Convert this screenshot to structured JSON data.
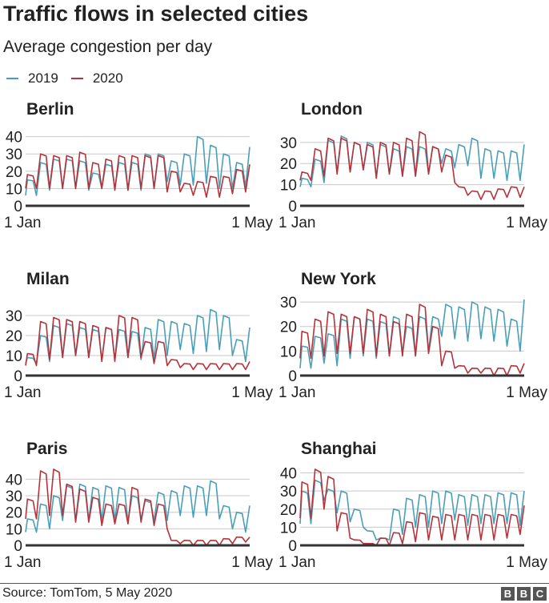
{
  "header": {
    "title": "Traffic flows in selected cities",
    "subtitle": "Average congestion per day"
  },
  "legend": [
    {
      "label": "2019",
      "color": "#4a9fb8"
    },
    {
      "label": "2020",
      "color": "#b5333a"
    }
  ],
  "footer": {
    "source": "Source: TomTom, 5 May 2020",
    "logo": [
      "B",
      "B",
      "C"
    ]
  },
  "chart_data": [
    {
      "type": "line",
      "title": "Berlin",
      "x_ticks": [
        "1 Jan",
        "1 May"
      ],
      "ylim": [
        0,
        44
      ],
      "y_ticks": [
        0,
        10,
        20,
        30,
        40
      ],
      "grid": true,
      "series": [
        {
          "name": "2019",
          "weekday_peaks": [
            15,
            25,
            27,
            27,
            26,
            19,
            24,
            25,
            25,
            30,
            30,
            26,
            30,
            40,
            35,
            30,
            25,
            34
          ],
          "weekend_lows": [
            6,
            9,
            10,
            10,
            9,
            10,
            10,
            9,
            9,
            10,
            14,
            12,
            12,
            13,
            10,
            10,
            11,
            12
          ]
        },
        {
          "name": "2020",
          "weekday_peaks": [
            18,
            30,
            29,
            29,
            31,
            25,
            27,
            29,
            29,
            29,
            29,
            20,
            13,
            14,
            17,
            17,
            21,
            24
          ],
          "weekend_lows": [
            10,
            10,
            10,
            10,
            10,
            10,
            9,
            9,
            10,
            10,
            8,
            8,
            6,
            5,
            5,
            7,
            8,
            9
          ]
        }
      ]
    },
    {
      "type": "line",
      "title": "London",
      "x_ticks": [
        "1 Jan",
        "1 May"
      ],
      "ylim": [
        0,
        36
      ],
      "y_ticks": [
        0,
        10,
        20,
        30
      ],
      "grid": true,
      "series": [
        {
          "name": "2019",
          "weekday_peaks": [
            13,
            22,
            31,
            33,
            30,
            30,
            29,
            27,
            28,
            28,
            28,
            27,
            29,
            32,
            27,
            26,
            26,
            29
          ],
          "weekend_lows": [
            9,
            11,
            16,
            16,
            17,
            14,
            15,
            14,
            14,
            15,
            20,
            18,
            19,
            13,
            13,
            12,
            12,
            12
          ]
        },
        {
          "name": "2020",
          "weekday_peaks": [
            16,
            27,
            32,
            32,
            30,
            29,
            30,
            30,
            32,
            35,
            28,
            24,
            9,
            7,
            7,
            8,
            9,
            9
          ],
          "weekend_lows": [
            12,
            14,
            15,
            16,
            17,
            13,
            15,
            14,
            14,
            15,
            16,
            11,
            5,
            3,
            3,
            4,
            4,
            5
          ]
        }
      ]
    },
    {
      "type": "line",
      "title": "Milan",
      "x_ticks": [
        "1 Jan",
        "1 May"
      ],
      "ylim": [
        0,
        38
      ],
      "y_ticks": [
        0,
        10,
        20,
        30
      ],
      "grid": true,
      "series": [
        {
          "name": "2019",
          "weekday_peaks": [
            9,
            20,
            25,
            26,
            24,
            23,
            24,
            23,
            22,
            24,
            28,
            27,
            26,
            30,
            33,
            30,
            18,
            24
          ],
          "weekend_lows": [
            6,
            7,
            9,
            10,
            9,
            8,
            8,
            9,
            8,
            8,
            10,
            13,
            11,
            12,
            13,
            10,
            7,
            8
          ]
        },
        {
          "name": "2020",
          "weekday_peaks": [
            11,
            27,
            29,
            28,
            27,
            25,
            24,
            30,
            29,
            17,
            17,
            8,
            6,
            6,
            6,
            6,
            6,
            7
          ],
          "weekend_lows": [
            5,
            8,
            9,
            10,
            9,
            7,
            7,
            9,
            9,
            6,
            5,
            4,
            3,
            3,
            3,
            3,
            3,
            3
          ]
        }
      ]
    },
    {
      "type": "line",
      "title": "New York",
      "x_ticks": [
        "1 Jan",
        "1 May"
      ],
      "ylim": [
        0,
        31
      ],
      "y_ticks": [
        0,
        10,
        20,
        30
      ],
      "grid": true,
      "series": [
        {
          "name": "2019",
          "weekday_peaks": [
            12,
            16,
            17,
            23,
            24,
            23,
            22,
            24,
            20,
            24,
            24,
            29,
            28,
            30,
            28,
            27,
            23,
            31
          ],
          "weekend_lows": [
            3,
            5,
            4,
            7,
            8,
            7,
            8,
            9,
            8,
            10,
            16,
            15,
            14,
            15,
            14,
            12,
            10,
            11
          ]
        },
        {
          "name": "2020",
          "weekday_peaks": [
            18,
            23,
            26,
            25,
            24,
            27,
            25,
            22,
            25,
            29,
            20,
            10,
            4,
            3,
            3,
            3,
            4,
            5
          ],
          "weekend_lows": [
            7,
            8,
            9,
            9,
            9,
            8,
            8,
            8,
            8,
            9,
            4,
            3,
            1,
            1,
            0,
            0,
            1,
            2
          ]
        }
      ]
    },
    {
      "type": "line",
      "title": "Paris",
      "x_ticks": [
        "1 Jan",
        "1 May"
      ],
      "ylim": [
        0,
        46
      ],
      "y_ticks": [
        0,
        10,
        20,
        30,
        40
      ],
      "grid": true,
      "series": [
        {
          "name": "2019",
          "weekday_peaks": [
            16,
            25,
            30,
            36,
            37,
            35,
            36,
            35,
            30,
            27,
            32,
            33,
            36,
            36,
            39,
            24,
            20,
            24
          ],
          "weekend_lows": [
            8,
            10,
            15,
            15,
            15,
            15,
            15,
            14,
            16,
            15,
            15,
            18,
            17,
            18,
            16,
            10,
            8,
            8
          ]
        },
        {
          "name": "2020",
          "weekday_peaks": [
            28,
            45,
            46,
            37,
            34,
            29,
            25,
            25,
            35,
            28,
            25,
            3,
            3,
            3,
            3,
            4,
            5,
            5
          ],
          "weekend_lows": [
            16,
            18,
            18,
            14,
            14,
            12,
            13,
            13,
            14,
            12,
            10,
            1,
            0,
            0,
            0,
            1,
            2,
            2
          ]
        }
      ]
    },
    {
      "type": "line",
      "title": "Shanghai",
      "x_ticks": [
        "1 Jan",
        "1 May"
      ],
      "ylim": [
        0,
        42
      ],
      "y_ticks": [
        0,
        10,
        20,
        30,
        40
      ],
      "grid": true,
      "series": [
        {
          "name": "2019",
          "weekday_peaks": [
            30,
            36,
            31,
            30,
            20,
            8,
            4,
            20,
            26,
            28,
            30,
            30,
            28,
            28,
            28,
            29,
            29,
            30
          ],
          "weekend_lows": [
            12,
            25,
            18,
            13,
            10,
            3,
            3,
            6,
            10,
            10,
            12,
            14,
            11,
            12,
            12,
            12,
            11,
            10
          ]
        },
        {
          "name": "2020",
          "weekday_peaks": [
            35,
            42,
            38,
            18,
            3,
            1,
            4,
            7,
            13,
            18,
            16,
            17,
            17,
            17,
            17,
            17,
            17,
            22
          ],
          "weekend_lows": [
            15,
            20,
            8,
            4,
            1,
            0,
            0,
            1,
            2,
            3,
            3,
            3,
            3,
            3,
            3,
            4,
            6,
            9
          ]
        }
      ]
    }
  ]
}
